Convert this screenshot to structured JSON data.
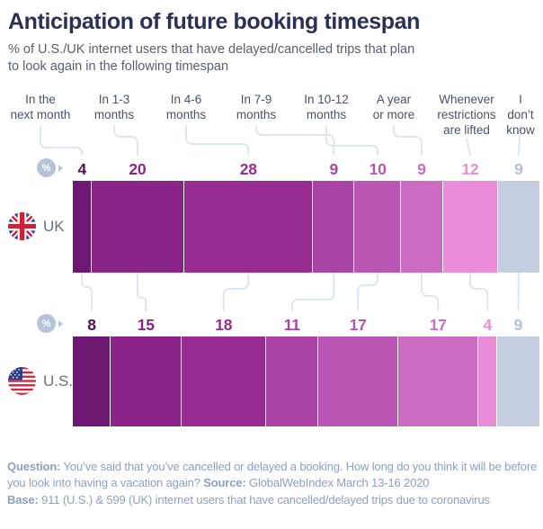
{
  "header": {
    "title": "Anticipation of future booking timespan",
    "subtitle": "% of U.S./UK internet users that have delayed/cancelled trips that plan\nto look again in the following timespan"
  },
  "chart_data": {
    "type": "bar",
    "variant": "horizontal-100pct-stacked",
    "unit": "%",
    "title": "Anticipation of future booking timespan",
    "subtitle": "% of U.S./UK internet users that have delayed/cancelled trips that plan to look again in the following timespan",
    "categories": [
      "In the next month",
      "In 1-3 months",
      "In 4-6 months",
      "In 7-9 months",
      "In 10-12 months",
      "A year or more",
      "Whenever restrictions are lifted",
      "I don’t know"
    ],
    "category_label_lines": [
      [
        "In the",
        "next month"
      ],
      [
        "In 1-3",
        "months"
      ],
      [
        "In 4-6",
        "months"
      ],
      [
        "In 7-9",
        "months"
      ],
      [
        "In 10-12",
        "months"
      ],
      [
        "A year",
        "or more"
      ],
      [
        "Whenever",
        "restrictions",
        "are lifted"
      ],
      [
        "I don’t",
        "know"
      ]
    ],
    "series": [
      {
        "name": "UK",
        "values": [
          4,
          20,
          28,
          9,
          10,
          9,
          12,
          9
        ]
      },
      {
        "name": "U.S.",
        "values": [
          8,
          15,
          18,
          11,
          17,
          17,
          4,
          9
        ]
      }
    ],
    "palette": [
      "#6d1971",
      "#8a2489",
      "#982c93",
      "#a943a5",
      "#b955b2",
      "#cc6cc3",
      "#ea8cda",
      "#c4cee0"
    ],
    "value_label_colors": [
      "#4e1053",
      "#8a2489",
      "#982c93",
      "#a943a5",
      "#b955b2",
      "#cc6cc3",
      "#ea8cda",
      "#b2bfd6"
    ],
    "legend_position": "none",
    "grid": false
  },
  "icons": {
    "percent": "%"
  },
  "footer": {
    "lines": [
      [
        {
          "b": "Question:"
        },
        {
          "t": " You’ve said that you’ve cancelled or delayed a booking. How long do you think it will be before"
        }
      ],
      [
        {
          "t": "you look into having a vacation again? "
        },
        {
          "b": "Source:"
        },
        {
          "t": " GlobalWebIndex March 13-16 2020"
        }
      ],
      [
        {
          "b": "Base:"
        },
        {
          "t": " 911 (U.S.) & 599 (UK) internet users that have cancelled/delayed trips due to coronavirus"
        }
      ]
    ]
  }
}
